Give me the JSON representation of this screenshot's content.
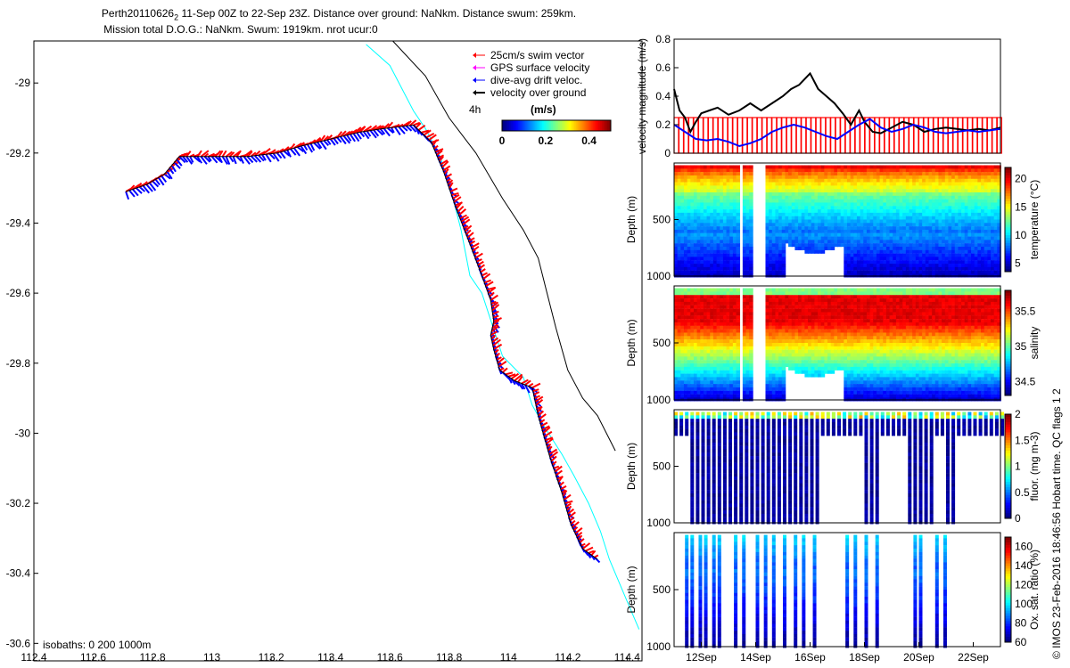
{
  "header": {
    "title_line1": "Perth20110626",
    "title_sub": "2",
    "title_line1_rest": " 11-Sep 00Z to 22-Sep 23Z. Distance over ground: NaNkm. Distance swum: 259km.",
    "title_line2": "Mission total D.O.G.: NaNkm. Swum: 1919km. nrot ucur:0"
  },
  "credit": "© IMOS 23-Feb-2016 18:46:56 Hobart time. QC flags 1  2",
  "colors": {
    "swim": "#ff0000",
    "gps": "#ff00ff",
    "drift": "#0000ff",
    "ground": "#000000",
    "isobath_shallow": "#00ffff",
    "isobath_deep": "#000000"
  },
  "chart_data": [
    {
      "type": "scatter",
      "id": "track-map",
      "xlim": [
        112.4,
        114.45
      ],
      "ylim": [
        -30.65,
        -28.88
      ],
      "xticks": [
        112.4,
        112.6,
        112.8,
        113,
        113.2,
        113.4,
        113.6,
        113.8,
        114,
        114.2,
        114.4
      ],
      "yticks": [
        -29,
        -29.2,
        -29.4,
        -29.6,
        -29.8,
        -30,
        -30.2,
        -30.4,
        -30.6
      ],
      "legend": [
        "25cm/s swim vector",
        "GPS surface velocity",
        "dive-avg drift veloc.",
        "velocity over ground"
      ],
      "legend_note": "4h",
      "colorbar_label": "(m/s)",
      "colorbar_ticks": [
        0,
        0.2,
        0.4
      ],
      "colorbar_range": [
        0,
        0.5
      ],
      "isobath_note": "isobaths: 0   200  1000m",
      "track": [
        [
          112.71,
          -29.31
        ],
        [
          112.78,
          -29.29
        ],
        [
          112.84,
          -29.26
        ],
        [
          112.89,
          -29.21
        ],
        [
          113.0,
          -29.21
        ],
        [
          113.12,
          -29.21
        ],
        [
          113.22,
          -29.2
        ],
        [
          113.3,
          -29.18
        ],
        [
          113.4,
          -29.16
        ],
        [
          113.5,
          -29.14
        ],
        [
          113.58,
          -29.13
        ],
        [
          113.68,
          -29.12
        ],
        [
          113.74,
          -29.17
        ],
        [
          113.78,
          -29.25
        ],
        [
          113.82,
          -29.35
        ],
        [
          113.87,
          -29.46
        ],
        [
          113.91,
          -29.55
        ],
        [
          113.94,
          -29.62
        ],
        [
          113.95,
          -29.68
        ],
        [
          113.94,
          -29.72
        ],
        [
          113.95,
          -29.76
        ],
        [
          113.97,
          -29.82
        ],
        [
          114.02,
          -29.85
        ],
        [
          114.08,
          -29.87
        ],
        [
          114.1,
          -29.95
        ],
        [
          114.14,
          -30.07
        ],
        [
          114.18,
          -30.17
        ],
        [
          114.21,
          -30.26
        ],
        [
          114.25,
          -30.33
        ],
        [
          114.3,
          -30.36
        ]
      ],
      "isobath_200": [
        [
          113.52,
          -28.89
        ],
        [
          113.6,
          -28.95
        ],
        [
          113.68,
          -29.08
        ],
        [
          113.72,
          -29.13
        ],
        [
          113.77,
          -29.21
        ],
        [
          113.81,
          -29.32
        ],
        [
          113.84,
          -29.42
        ],
        [
          113.87,
          -29.55
        ],
        [
          113.91,
          -29.6
        ],
        [
          113.98,
          -29.78
        ],
        [
          114.05,
          -29.84
        ],
        [
          114.08,
          -29.92
        ],
        [
          114.12,
          -29.98
        ],
        [
          114.18,
          -30.06
        ],
        [
          114.22,
          -30.12
        ],
        [
          114.27,
          -30.2
        ],
        [
          114.31,
          -30.28
        ],
        [
          114.34,
          -30.36
        ],
        [
          114.39,
          -30.46
        ],
        [
          114.44,
          -30.56
        ]
      ],
      "isobath_1000": [
        [
          113.61,
          -28.88
        ],
        [
          113.72,
          -28.98
        ],
        [
          113.8,
          -29.1
        ],
        [
          113.89,
          -29.2
        ],
        [
          113.98,
          -29.33
        ],
        [
          114.05,
          -29.42
        ],
        [
          114.1,
          -29.5
        ],
        [
          114.13,
          -29.6
        ],
        [
          114.16,
          -29.7
        ],
        [
          114.2,
          -29.82
        ],
        [
          114.25,
          -29.9
        ],
        [
          114.3,
          -29.95
        ],
        [
          114.33,
          -30.0
        ],
        [
          114.36,
          -30.05
        ]
      ]
    },
    {
      "type": "line",
      "id": "velocity-panel",
      "ylabel": "velocity magnitude (m/s)",
      "ylim": [
        0,
        0.8
      ],
      "yticks": [
        0,
        0.2,
        0.4,
        0.6,
        0.8
      ],
      "xlim": [
        11.0,
        23.0
      ],
      "series": [
        {
          "color": "#000000",
          "x": [
            11.0,
            11.2,
            11.4,
            11.6,
            11.8,
            12.0,
            12.3,
            12.6,
            13.0,
            13.4,
            13.8,
            14.2,
            14.6,
            15.0,
            15.3,
            15.6,
            15.8,
            16.0,
            16.3,
            16.6,
            16.9,
            17.2,
            17.5,
            17.8,
            18.0,
            18.3,
            18.6,
            19.0,
            19.4,
            19.8,
            20.2,
            20.6,
            21.0,
            21.4,
            21.8,
            22.2,
            22.6,
            23.0
          ],
          "values": [
            0.45,
            0.3,
            0.25,
            0.15,
            0.22,
            0.28,
            0.3,
            0.32,
            0.27,
            0.3,
            0.35,
            0.3,
            0.35,
            0.4,
            0.45,
            0.48,
            0.52,
            0.56,
            0.45,
            0.4,
            0.35,
            0.28,
            0.2,
            0.3,
            0.22,
            0.15,
            0.14,
            0.18,
            0.22,
            0.2,
            0.15,
            0.17,
            0.18,
            0.17,
            0.16,
            0.17,
            0.16,
            0.18
          ]
        },
        {
          "color": "#0000ff",
          "x": [
            11.0,
            11.4,
            11.8,
            12.2,
            12.6,
            13.0,
            13.4,
            13.8,
            14.2,
            14.6,
            15.0,
            15.4,
            15.8,
            16.2,
            16.6,
            17.0,
            17.4,
            17.8,
            18.2,
            18.6,
            19.0,
            19.4,
            19.8,
            20.2,
            20.6,
            21.0,
            21.4,
            21.8,
            22.2,
            22.6,
            23.0
          ],
          "values": [
            0.2,
            0.15,
            0.1,
            0.09,
            0.1,
            0.08,
            0.05,
            0.07,
            0.1,
            0.15,
            0.18,
            0.2,
            0.18,
            0.15,
            0.12,
            0.1,
            0.15,
            0.2,
            0.24,
            0.18,
            0.15,
            0.17,
            0.2,
            0.18,
            0.15,
            0.14,
            0.15,
            0.16,
            0.15,
            0.16,
            0.17
          ]
        }
      ],
      "swim_level": 0.25
    },
    {
      "type": "heatmap",
      "id": "temperature-panel",
      "ylabel": "Depth (m)",
      "yticks": [
        500,
        1000
      ],
      "ylim": [
        0,
        1000
      ],
      "colorbar_label": "temperature (°C)",
      "colorbar_ticks": [
        5,
        10,
        15,
        20
      ],
      "colorbar_range": [
        3.5,
        22
      ]
    },
    {
      "type": "heatmap",
      "id": "salinity-panel",
      "ylabel": "Depth (m)",
      "yticks": [
        500,
        1000
      ],
      "ylim": [
        0,
        1000
      ],
      "colorbar_label": "salinity",
      "colorbar_ticks": [
        34.5,
        35,
        35.5
      ],
      "colorbar_range": [
        34.3,
        35.8
      ]
    },
    {
      "type": "heatmap",
      "id": "fluorescence-panel",
      "ylabel": "Depth (m)",
      "yticks": [
        500,
        1000
      ],
      "ylim": [
        0,
        1000
      ],
      "colorbar_label": "fluor. (mg m-3)",
      "colorbar_ticks": [
        0,
        0.5,
        1,
        1.5,
        2
      ],
      "colorbar_range": [
        0,
        2
      ]
    },
    {
      "type": "heatmap",
      "id": "oxygen-panel",
      "ylabel": "Depth (m)",
      "yticks": [
        500,
        1000
      ],
      "ylim": [
        0,
        1000
      ],
      "colorbar_label": "Ox. sat. ratio (%)",
      "colorbar_ticks": [
        60,
        80,
        100,
        120,
        140,
        160
      ],
      "colorbar_range": [
        60,
        170
      ],
      "xticks": [
        "12Sep",
        "14Sep",
        "16Sep",
        "18Sep",
        "20Sep",
        "22Sep"
      ],
      "xtick_days": [
        12,
        14,
        16,
        18,
        20,
        22
      ]
    }
  ]
}
